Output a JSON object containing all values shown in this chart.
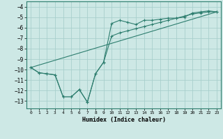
{
  "xlabel": "Humidex (Indice chaleur)",
  "bg_color": "#cde8e5",
  "grid_color": "#a8cfcc",
  "line_color": "#2d7d6e",
  "xlim": [
    -0.5,
    23.5
  ],
  "ylim": [
    -13.7,
    -3.5
  ],
  "xticks": [
    0,
    1,
    2,
    3,
    4,
    5,
    6,
    7,
    8,
    9,
    10,
    11,
    12,
    13,
    14,
    15,
    16,
    17,
    18,
    19,
    20,
    21,
    22,
    23
  ],
  "yticks": [
    -4,
    -5,
    -6,
    -7,
    -8,
    -9,
    -10,
    -11,
    -12,
    -13
  ],
  "series1_x": [
    0,
    1,
    2,
    3,
    4,
    5,
    6,
    7,
    8,
    9,
    10,
    11,
    12,
    13,
    14,
    15,
    16,
    17,
    18,
    19,
    20,
    21,
    22,
    23
  ],
  "series1_y": [
    -9.8,
    -10.3,
    -10.4,
    -10.5,
    -12.6,
    -12.6,
    -11.9,
    -13.1,
    -10.4,
    -9.3,
    -5.6,
    -5.3,
    -5.5,
    -5.7,
    -5.3,
    -5.3,
    -5.2,
    -5.1,
    -5.1,
    -5.0,
    -4.6,
    -4.5,
    -4.4,
    -4.5
  ],
  "series2_x": [
    0,
    1,
    2,
    3,
    4,
    5,
    6,
    7,
    8,
    9,
    10,
    11,
    12,
    13,
    14,
    15,
    16,
    17,
    18,
    19,
    20,
    21,
    22,
    23
  ],
  "series2_y": [
    -9.8,
    -10.3,
    -10.4,
    -10.5,
    -12.6,
    -12.6,
    -11.9,
    -13.1,
    -10.4,
    -9.3,
    -6.8,
    -6.5,
    -6.3,
    -6.1,
    -5.9,
    -5.7,
    -5.5,
    -5.3,
    -5.1,
    -4.9,
    -4.7,
    -4.6,
    -4.5,
    -4.5
  ],
  "series3_x": [
    0,
    23
  ],
  "series3_y": [
    -9.8,
    -4.5
  ]
}
